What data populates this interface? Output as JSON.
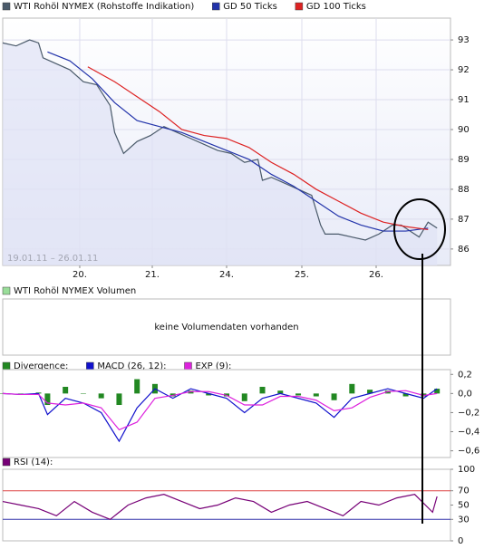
{
  "chart_data": [
    {
      "type": "line",
      "date_range": "19.01.11 – 26.01.11",
      "xlim": [
        0,
        100
      ],
      "xticks": [
        {
          "value": 17.2,
          "label": "20."
        },
        {
          "value": 33.4,
          "label": "21."
        },
        {
          "value": 50,
          "label": "24."
        },
        {
          "value": 66.8,
          "label": "25."
        },
        {
          "value": 83.4,
          "label": "26."
        }
      ],
      "ylim": [
        85.45,
        93.73
      ],
      "yticks": [
        86,
        87,
        88,
        89,
        90,
        91,
        92,
        93
      ],
      "grid": true,
      "series": [
        {
          "name": "WTI Rohöl NYMEX (Rohstoffe Indikation)",
          "color": "#4a5a6a",
          "style": "area",
          "x": [
            0,
            3,
            6,
            8,
            9,
            12,
            15,
            18,
            21,
            24,
            25,
            27,
            30,
            33,
            36,
            39,
            42,
            45,
            48,
            51,
            54,
            57,
            58,
            60,
            63,
            66,
            69,
            71,
            72,
            75,
            78,
            81,
            84,
            87,
            89,
            91,
            93,
            95,
            97
          ],
          "values": [
            92.9,
            92.8,
            93.0,
            92.9,
            92.4,
            92.2,
            92.0,
            91.6,
            91.5,
            90.8,
            89.9,
            89.2,
            89.6,
            89.8,
            90.1,
            89.9,
            89.7,
            89.5,
            89.3,
            89.2,
            88.9,
            89.0,
            88.3,
            88.4,
            88.2,
            88.0,
            87.8,
            86.8,
            86.5,
            86.5,
            86.4,
            86.3,
            86.5,
            86.8,
            86.8,
            86.6,
            86.4,
            86.9,
            86.7
          ]
        },
        {
          "name": "GD 50 Ticks",
          "color": "#2233aa",
          "style": "line",
          "x": [
            10,
            15,
            20,
            25,
            30,
            35,
            40,
            45,
            50,
            55,
            60,
            65,
            70,
            75,
            80,
            85,
            90,
            95
          ],
          "values": [
            92.6,
            92.3,
            91.7,
            90.9,
            90.3,
            90.1,
            89.9,
            89.6,
            89.3,
            89.0,
            88.5,
            88.1,
            87.6,
            87.1,
            86.8,
            86.6,
            86.6,
            86.7
          ]
        },
        {
          "name": "GD 100 Ticks",
          "color": "#dd2222",
          "style": "line",
          "x": [
            19,
            25,
            30,
            35,
            40,
            45,
            50,
            55,
            60,
            65,
            70,
            75,
            80,
            85,
            90,
            95
          ],
          "values": [
            92.1,
            91.6,
            91.1,
            90.6,
            90.0,
            89.8,
            89.7,
            89.4,
            88.9,
            88.5,
            88.0,
            87.6,
            87.2,
            86.9,
            86.75,
            86.65
          ]
        }
      ]
    },
    {
      "type": "empty",
      "series": [
        {
          "name": "WTI Rohöl NYMEX Volumen",
          "color": "#99dd99"
        }
      ],
      "message": "keine Volumendaten vorhanden"
    },
    {
      "type": "line",
      "xlim": [
        0,
        100
      ],
      "ylim": [
        -0.67,
        0.25
      ],
      "yticks": [
        {
          "value": 0.2,
          "label": "0,2"
        },
        {
          "value": 0,
          "label": "0,0"
        },
        {
          "value": -0.2,
          "label": "−0,2"
        },
        {
          "value": -0.4,
          "label": "−0,4"
        },
        {
          "value": -0.6,
          "label": "−0,6"
        }
      ],
      "series": [
        {
          "name": "Divergence:",
          "color": "#228822",
          "style": "bar",
          "x": [
            0,
            4,
            8,
            10,
            14,
            18,
            22,
            26,
            30,
            34,
            38,
            42,
            46,
            50,
            54,
            58,
            62,
            66,
            70,
            74,
            78,
            82,
            86,
            90,
            94,
            97
          ],
          "values": [
            0,
            0,
            0.01,
            -0.12,
            0.07,
            0,
            -0.05,
            -0.12,
            0.15,
            0.1,
            -0.03,
            0.03,
            -0.02,
            -0.03,
            -0.08,
            0.07,
            0.03,
            -0.02,
            -0.03,
            -0.07,
            0.1,
            0.04,
            0.03,
            -0.03,
            -0.03,
            0.05
          ]
        },
        {
          "name": "MACD (26, 12):",
          "color": "#1111cc",
          "style": "line",
          "x": [
            0,
            4,
            8,
            10,
            14,
            18,
            22,
            26,
            30,
            34,
            38,
            42,
            46,
            50,
            54,
            58,
            62,
            66,
            70,
            74,
            78,
            82,
            86,
            90,
            94,
            97
          ],
          "values": [
            0.0,
            -0.01,
            0.0,
            -0.22,
            -0.05,
            -0.1,
            -0.2,
            -0.5,
            -0.15,
            0.05,
            -0.05,
            0.05,
            0.0,
            -0.05,
            -0.2,
            -0.05,
            0.0,
            -0.05,
            -0.1,
            -0.25,
            -0.05,
            0.0,
            0.05,
            0.0,
            -0.05,
            0.05
          ]
        },
        {
          "name": "EXP (9):",
          "color": "#dd22dd",
          "style": "line",
          "x": [
            0,
            4,
            8,
            10,
            14,
            18,
            22,
            26,
            30,
            34,
            38,
            42,
            46,
            50,
            54,
            58,
            62,
            66,
            70,
            74,
            78,
            82,
            86,
            90,
            94,
            97
          ],
          "values": [
            0.0,
            -0.01,
            -0.01,
            -0.1,
            -0.12,
            -0.1,
            -0.15,
            -0.38,
            -0.3,
            -0.05,
            -0.02,
            0.02,
            0.02,
            -0.02,
            -0.12,
            -0.12,
            -0.03,
            -0.03,
            -0.07,
            -0.18,
            -0.15,
            -0.04,
            0.02,
            0.03,
            -0.02,
            0.0
          ]
        }
      ]
    },
    {
      "type": "line",
      "xlim": [
        0,
        100
      ],
      "ylim": [
        0,
        100
      ],
      "yticks": [
        100,
        70,
        50,
        30,
        0
      ],
      "levels": [
        {
          "value": 70,
          "color": "#dd4444"
        },
        {
          "value": 30,
          "color": "#3333aa"
        }
      ],
      "series": [
        {
          "name": "RSI (14):",
          "color": "#770077",
          "style": "line",
          "x": [
            0,
            4,
            8,
            12,
            16,
            20,
            24,
            28,
            32,
            36,
            40,
            44,
            48,
            52,
            56,
            60,
            64,
            68,
            72,
            76,
            80,
            84,
            88,
            92,
            96,
            97
          ],
          "values": [
            55,
            50,
            45,
            35,
            55,
            40,
            30,
            50,
            60,
            65,
            55,
            45,
            50,
            60,
            55,
            40,
            50,
            55,
            45,
            35,
            55,
            50,
            60,
            65,
            40,
            62
          ]
        }
      ]
    }
  ]
}
